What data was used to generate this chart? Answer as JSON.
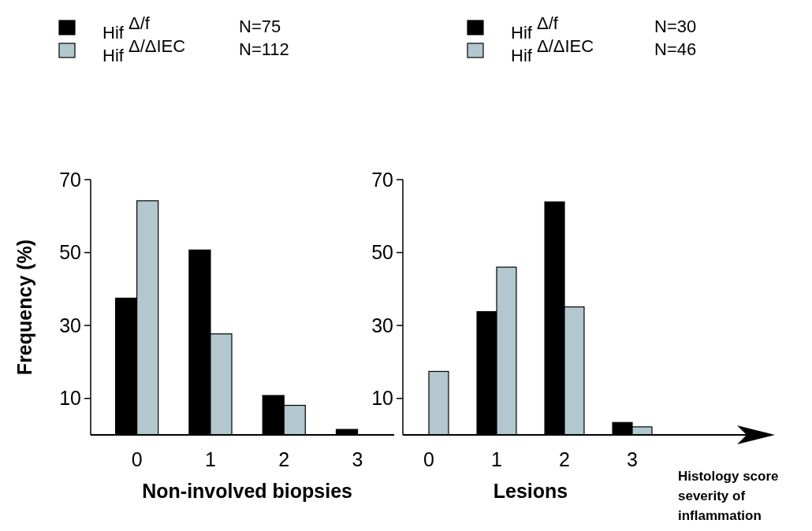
{
  "chart_data": [
    {
      "type": "bar",
      "categories": [
        "0",
        "1",
        "2",
        "3"
      ],
      "xlabel": "Non-involved biopsies",
      "ylabel": "Frequency (%)",
      "ylim": [
        0,
        70
      ],
      "yticks": [
        10,
        30,
        50,
        70
      ],
      "legend": "top",
      "annotations": [
        "N=75",
        "N=112"
      ],
      "series": [
        {
          "name": "Hif $^{Δ/f}$",
          "color": "#000000",
          "values": [
            37.5,
            50.7,
            10.8,
            1.5
          ]
        },
        {
          "name": "Hif $^{Δ/ΔIEC}$",
          "color": "#b3c7cf",
          "values": [
            64.2,
            27.7,
            8.1,
            0
          ]
        }
      ]
    },
    {
      "type": "bar",
      "categories": [
        "0",
        "1",
        "2",
        "3"
      ],
      "xlabel": "Lesions",
      "ylim": [
        0,
        70
      ],
      "yticks": [
        10,
        30,
        50,
        70
      ],
      "legend": "top",
      "annotations": [
        "N=30",
        "N=46",
        "Histology score severity of inflammation"
      ],
      "series": [
        {
          "name": "Hif $^{Δ/f}$",
          "color": "#000000",
          "values": [
            0,
            33.8,
            63.9,
            3.4
          ]
        },
        {
          "name": "Hif $^{Δ/ΔIEC}$",
          "color": "#b3c7cf",
          "values": [
            17.4,
            46.0,
            35.1,
            2.2
          ]
        }
      ]
    }
  ]
}
